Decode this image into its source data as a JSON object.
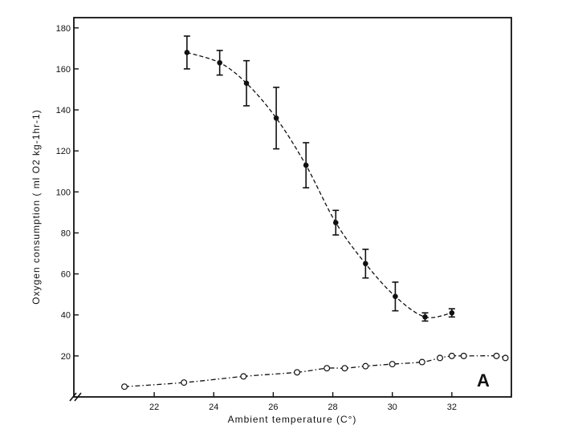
{
  "chart_data": {
    "type": "scatter",
    "xlabel": "Ambient temperature (C°)",
    "ylabel": "Oxygen consumption ( ml O2 kg-1hr-1)",
    "panel_label": "A",
    "xlim": [
      19.3,
      34
    ],
    "ylim": [
      0,
      185
    ],
    "x_ticks": [
      22,
      24,
      26,
      28,
      30,
      32
    ],
    "y_ticks": [
      20,
      40,
      60,
      80,
      100,
      120,
      140,
      160,
      180
    ],
    "axis_break": "x-origin",
    "grid": false,
    "legend": "none",
    "series": [
      {
        "marker": "filled-circle",
        "line_style": "dashed",
        "color": "#111111",
        "points": [
          {
            "x": 23.1,
            "y": 168,
            "err": 8
          },
          {
            "x": 24.2,
            "y": 163,
            "err": 6
          },
          {
            "x": 25.1,
            "y": 153,
            "err": 11
          },
          {
            "x": 26.1,
            "y": 136,
            "err": 15
          },
          {
            "x": 27.1,
            "y": 113,
            "err": 11
          },
          {
            "x": 28.1,
            "y": 85,
            "err": 6
          },
          {
            "x": 29.1,
            "y": 65,
            "err": 7
          },
          {
            "x": 30.1,
            "y": 49,
            "err": 7
          },
          {
            "x": 31.1,
            "y": 39,
            "err": 2
          },
          {
            "x": 32.0,
            "y": 41,
            "err": 2
          }
        ]
      },
      {
        "marker": "open-circle",
        "line_style": "dash-dot",
        "color": "#111111",
        "points": [
          {
            "x": 21.0,
            "y": 5
          },
          {
            "x": 23.0,
            "y": 7
          },
          {
            "x": 25.0,
            "y": 10
          },
          {
            "x": 26.8,
            "y": 12
          },
          {
            "x": 27.8,
            "y": 14
          },
          {
            "x": 28.4,
            "y": 14
          },
          {
            "x": 29.1,
            "y": 15
          },
          {
            "x": 30.0,
            "y": 16
          },
          {
            "x": 31.0,
            "y": 17
          },
          {
            "x": 31.6,
            "y": 19
          },
          {
            "x": 32.0,
            "y": 20
          },
          {
            "x": 32.4,
            "y": 20
          },
          {
            "x": 33.5,
            "y": 20
          },
          {
            "x": 33.8,
            "y": 19
          }
        ]
      }
    ]
  }
}
